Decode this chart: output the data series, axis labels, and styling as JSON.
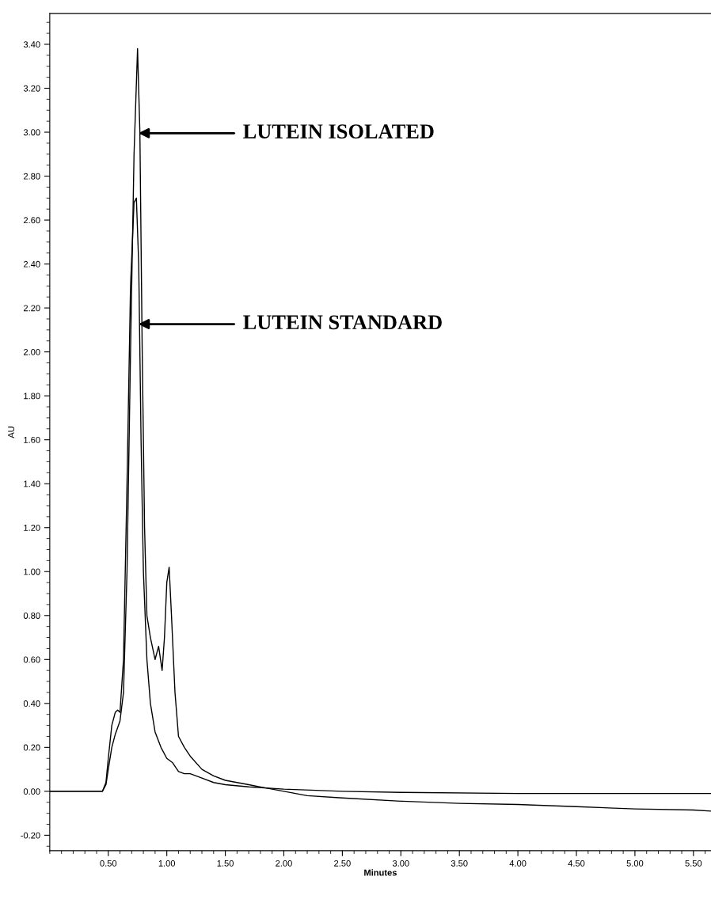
{
  "chart_data": {
    "type": "line",
    "xlabel": "Minutes",
    "ylabel": "AU",
    "xlim": [
      0,
      5.65
    ],
    "ylim": [
      -0.27,
      3.54
    ],
    "xticks": [
      {
        "value": 0.5,
        "label": "0.50"
      },
      {
        "value": 1.0,
        "label": "1.00"
      },
      {
        "value": 1.5,
        "label": "1.50"
      },
      {
        "value": 2.0,
        "label": "2.00"
      },
      {
        "value": 2.5,
        "label": "2.50"
      },
      {
        "value": 3.0,
        "label": "3.00"
      },
      {
        "value": 3.5,
        "label": "3.50"
      },
      {
        "value": 4.0,
        "label": "4.00"
      },
      {
        "value": 4.5,
        "label": "4.50"
      },
      {
        "value": 5.0,
        "label": "5.00"
      },
      {
        "value": 5.5,
        "label": "5.50"
      }
    ],
    "yticks": [
      {
        "value": -0.2,
        "label": "-0.20"
      },
      {
        "value": 0,
        "label": "0.00"
      },
      {
        "value": 0.2,
        "label": "0.20"
      },
      {
        "value": 0.4,
        "label": "0.40"
      },
      {
        "value": 0.6,
        "label": "0.60"
      },
      {
        "value": 0.8,
        "label": "0.80"
      },
      {
        "value": 1.0,
        "label": "1.00"
      },
      {
        "value": 1.2,
        "label": "1.20"
      },
      {
        "value": 1.4,
        "label": "1.40"
      },
      {
        "value": 1.6,
        "label": "1.60"
      },
      {
        "value": 1.8,
        "label": "1.80"
      },
      {
        "value": 2.0,
        "label": "2.00"
      },
      {
        "value": 2.2,
        "label": "2.20"
      },
      {
        "value": 2.4,
        "label": "2.40"
      },
      {
        "value": 2.6,
        "label": "2.60"
      },
      {
        "value": 2.8,
        "label": "2.80"
      },
      {
        "value": 3.0,
        "label": "3.00"
      },
      {
        "value": 3.2,
        "label": "3.20"
      },
      {
        "value": 3.4,
        "label": "3.40"
      }
    ],
    "grid": false,
    "marker": "none",
    "line_style": "solid",
    "series": [
      {
        "color": "#000000",
        "x": [
          0,
          0.45,
          0.48,
          0.5,
          0.53,
          0.56,
          0.6,
          0.63,
          0.66,
          0.69,
          0.72,
          0.75,
          0.77,
          0.79,
          0.81,
          0.83,
          0.86,
          0.9,
          0.93,
          0.96,
          0.98,
          1.0,
          1.02,
          1.04,
          1.07,
          1.1,
          1.15,
          1.2,
          1.3,
          1.4,
          1.5,
          1.6,
          1.7,
          1.8,
          1.9,
          2.0,
          2.2,
          2.5,
          3.0,
          3.5,
          4.0,
          4.5,
          5.0,
          5.5,
          5.65
        ],
        "values": [
          0,
          0,
          0.03,
          0.1,
          0.2,
          0.26,
          0.32,
          0.45,
          1.0,
          2.0,
          2.9,
          3.38,
          3.0,
          2.0,
          1.2,
          0.8,
          0.7,
          0.6,
          0.66,
          0.55,
          0.7,
          0.95,
          1.02,
          0.8,
          0.45,
          0.25,
          0.2,
          0.16,
          0.1,
          0.07,
          0.05,
          0.04,
          0.03,
          0.02,
          0.01,
          0.0,
          -0.02,
          -0.03,
          -0.045,
          -0.055,
          -0.06,
          -0.07,
          -0.08,
          -0.085,
          -0.09
        ]
      },
      {
        "color": "#000000",
        "x": [
          0,
          0.45,
          0.48,
          0.5,
          0.53,
          0.56,
          0.58,
          0.6,
          0.63,
          0.66,
          0.69,
          0.72,
          0.74,
          0.76,
          0.78,
          0.8,
          0.83,
          0.86,
          0.9,
          0.95,
          1.0,
          1.05,
          1.1,
          1.15,
          1.2,
          1.25,
          1.3,
          1.4,
          1.5,
          1.7,
          2.0,
          2.5,
          3.0,
          4.0,
          5.0,
          5.65
        ],
        "values": [
          0,
          0,
          0.04,
          0.15,
          0.3,
          0.36,
          0.37,
          0.36,
          0.6,
          1.4,
          2.3,
          2.68,
          2.7,
          2.4,
          1.6,
          1.0,
          0.6,
          0.4,
          0.27,
          0.2,
          0.15,
          0.13,
          0.09,
          0.08,
          0.08,
          0.07,
          0.06,
          0.04,
          0.03,
          0.02,
          0.01,
          0.0,
          -0.005,
          -0.01,
          -0.01,
          -0.01
        ]
      }
    ],
    "annotations": [
      "LUTEIN ISOLATED",
      "LUTEIN STANDARD"
    ]
  }
}
